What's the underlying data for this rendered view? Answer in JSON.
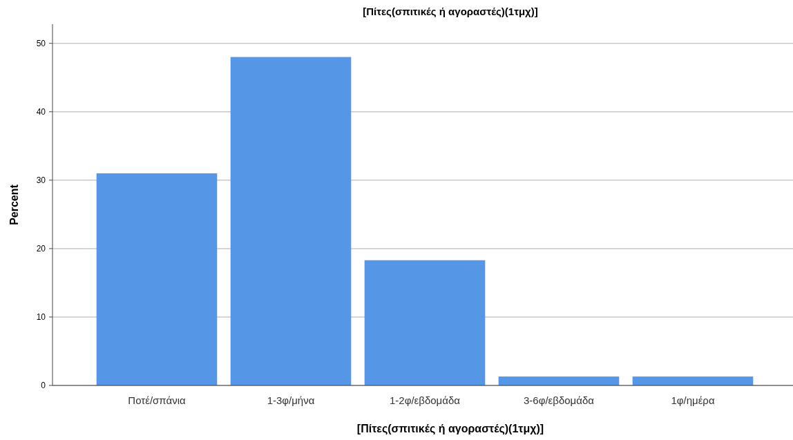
{
  "chart_data": {
    "type": "bar",
    "title": "[Πίτες(σπιτικές ή αγοραστές)(1τμχ)]",
    "xlabel": "[Πίτες(σπιτικές ή αγοραστές)(1τμχ)]",
    "ylabel": "Percent",
    "categories": [
      "Ποτέ/σπάνια",
      "1-3φ/μήνα",
      "1-2φ/εβδομάδα",
      "3-6φ/εβδομάδα",
      "1φ/ημέρα"
    ],
    "values": [
      31.0,
      48.0,
      18.3,
      1.3,
      1.3
    ],
    "color": "#5596e6",
    "ylim": [
      0,
      52.8
    ],
    "yticks": [
      0,
      10,
      20,
      30,
      40,
      50
    ],
    "grid": "y"
  }
}
